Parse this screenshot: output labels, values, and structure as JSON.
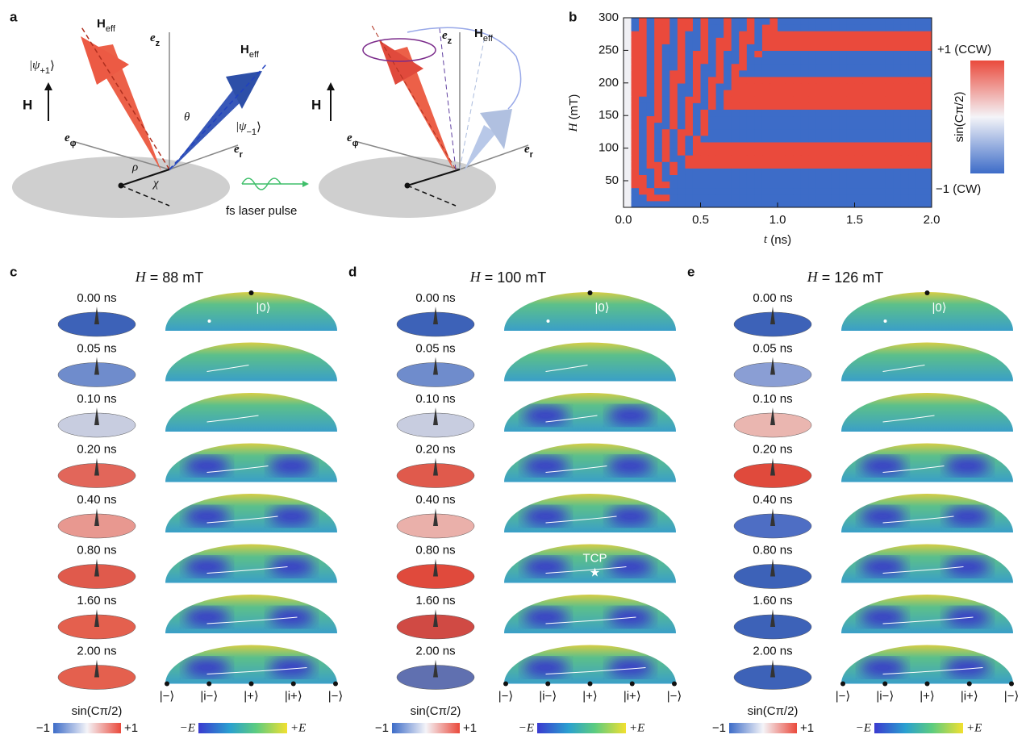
{
  "panel_labels": [
    "a",
    "b",
    "c",
    "d",
    "e"
  ],
  "panel_a": {
    "left": {
      "heff_top": {
        "base": "H",
        "sub": "eff"
      },
      "heff_blue": {
        "base": "H",
        "sub": "eff"
      },
      "psi_plus": {
        "pre": "|ψ",
        "sub": "+1",
        "post": "⟩"
      },
      "psi_minus": {
        "pre": "|ψ",
        "sub": "−1",
        "post": "⟩"
      },
      "ez": {
        "base": "e",
        "sub": "z"
      },
      "ephi": {
        "base": "e",
        "sub": "φ"
      },
      "er": {
        "base": "e",
        "sub": "r"
      },
      "theta": "θ",
      "rho": "ρ",
      "chi": "χ",
      "field": "H"
    },
    "pulse": "fs laser pulse",
    "right": {
      "ez": {
        "base": "e",
        "sub": "z"
      },
      "heff": {
        "base": "H",
        "sub": "eff"
      },
      "ephi": {
        "base": "e",
        "sub": "φ"
      },
      "er": {
        "base": "e",
        "sub": "r"
      },
      "field": "H"
    }
  },
  "panel_b": {
    "xlabel": {
      "var": "t",
      "unit": " (ns)"
    },
    "ylabel": {
      "var": "H",
      "unit": " (mT)"
    },
    "xticks": [
      "0.0",
      "0.5",
      "1.0",
      "1.5",
      "2.0"
    ],
    "yticks": [
      "50",
      "100",
      "150",
      "200",
      "250",
      "300"
    ],
    "colorbar_top": "+1 (CCW)",
    "colorbar_bottom": "−1 (CW)",
    "colorbar_label": "sin(Cπ/2)"
  },
  "columns": [
    {
      "title": {
        "var": "H",
        "rest": " = 88 mT"
      }
    },
    {
      "title": {
        "var": "H",
        "rest": " = 100 mT"
      },
      "annotation": "TCP"
    },
    {
      "title": {
        "var": "H",
        "rest": " = 126 mT"
      }
    }
  ],
  "times": [
    "0.00 ns",
    "0.05 ns",
    "0.10 ns",
    "0.20 ns",
    "0.40 ns",
    "0.80 ns",
    "1.60 ns",
    "2.00 ns"
  ],
  "initial_state": "|0⟩",
  "states": [
    "|−⟩",
    "|i−⟩",
    "|+⟩",
    "|i+⟩",
    "|−⟩"
  ],
  "colorbar_title": "sin(Cπ/2)",
  "colorbar_ends": [
    "−1",
    "+1"
  ],
  "energy_ends": [
    "−E",
    "+E"
  ]
}
